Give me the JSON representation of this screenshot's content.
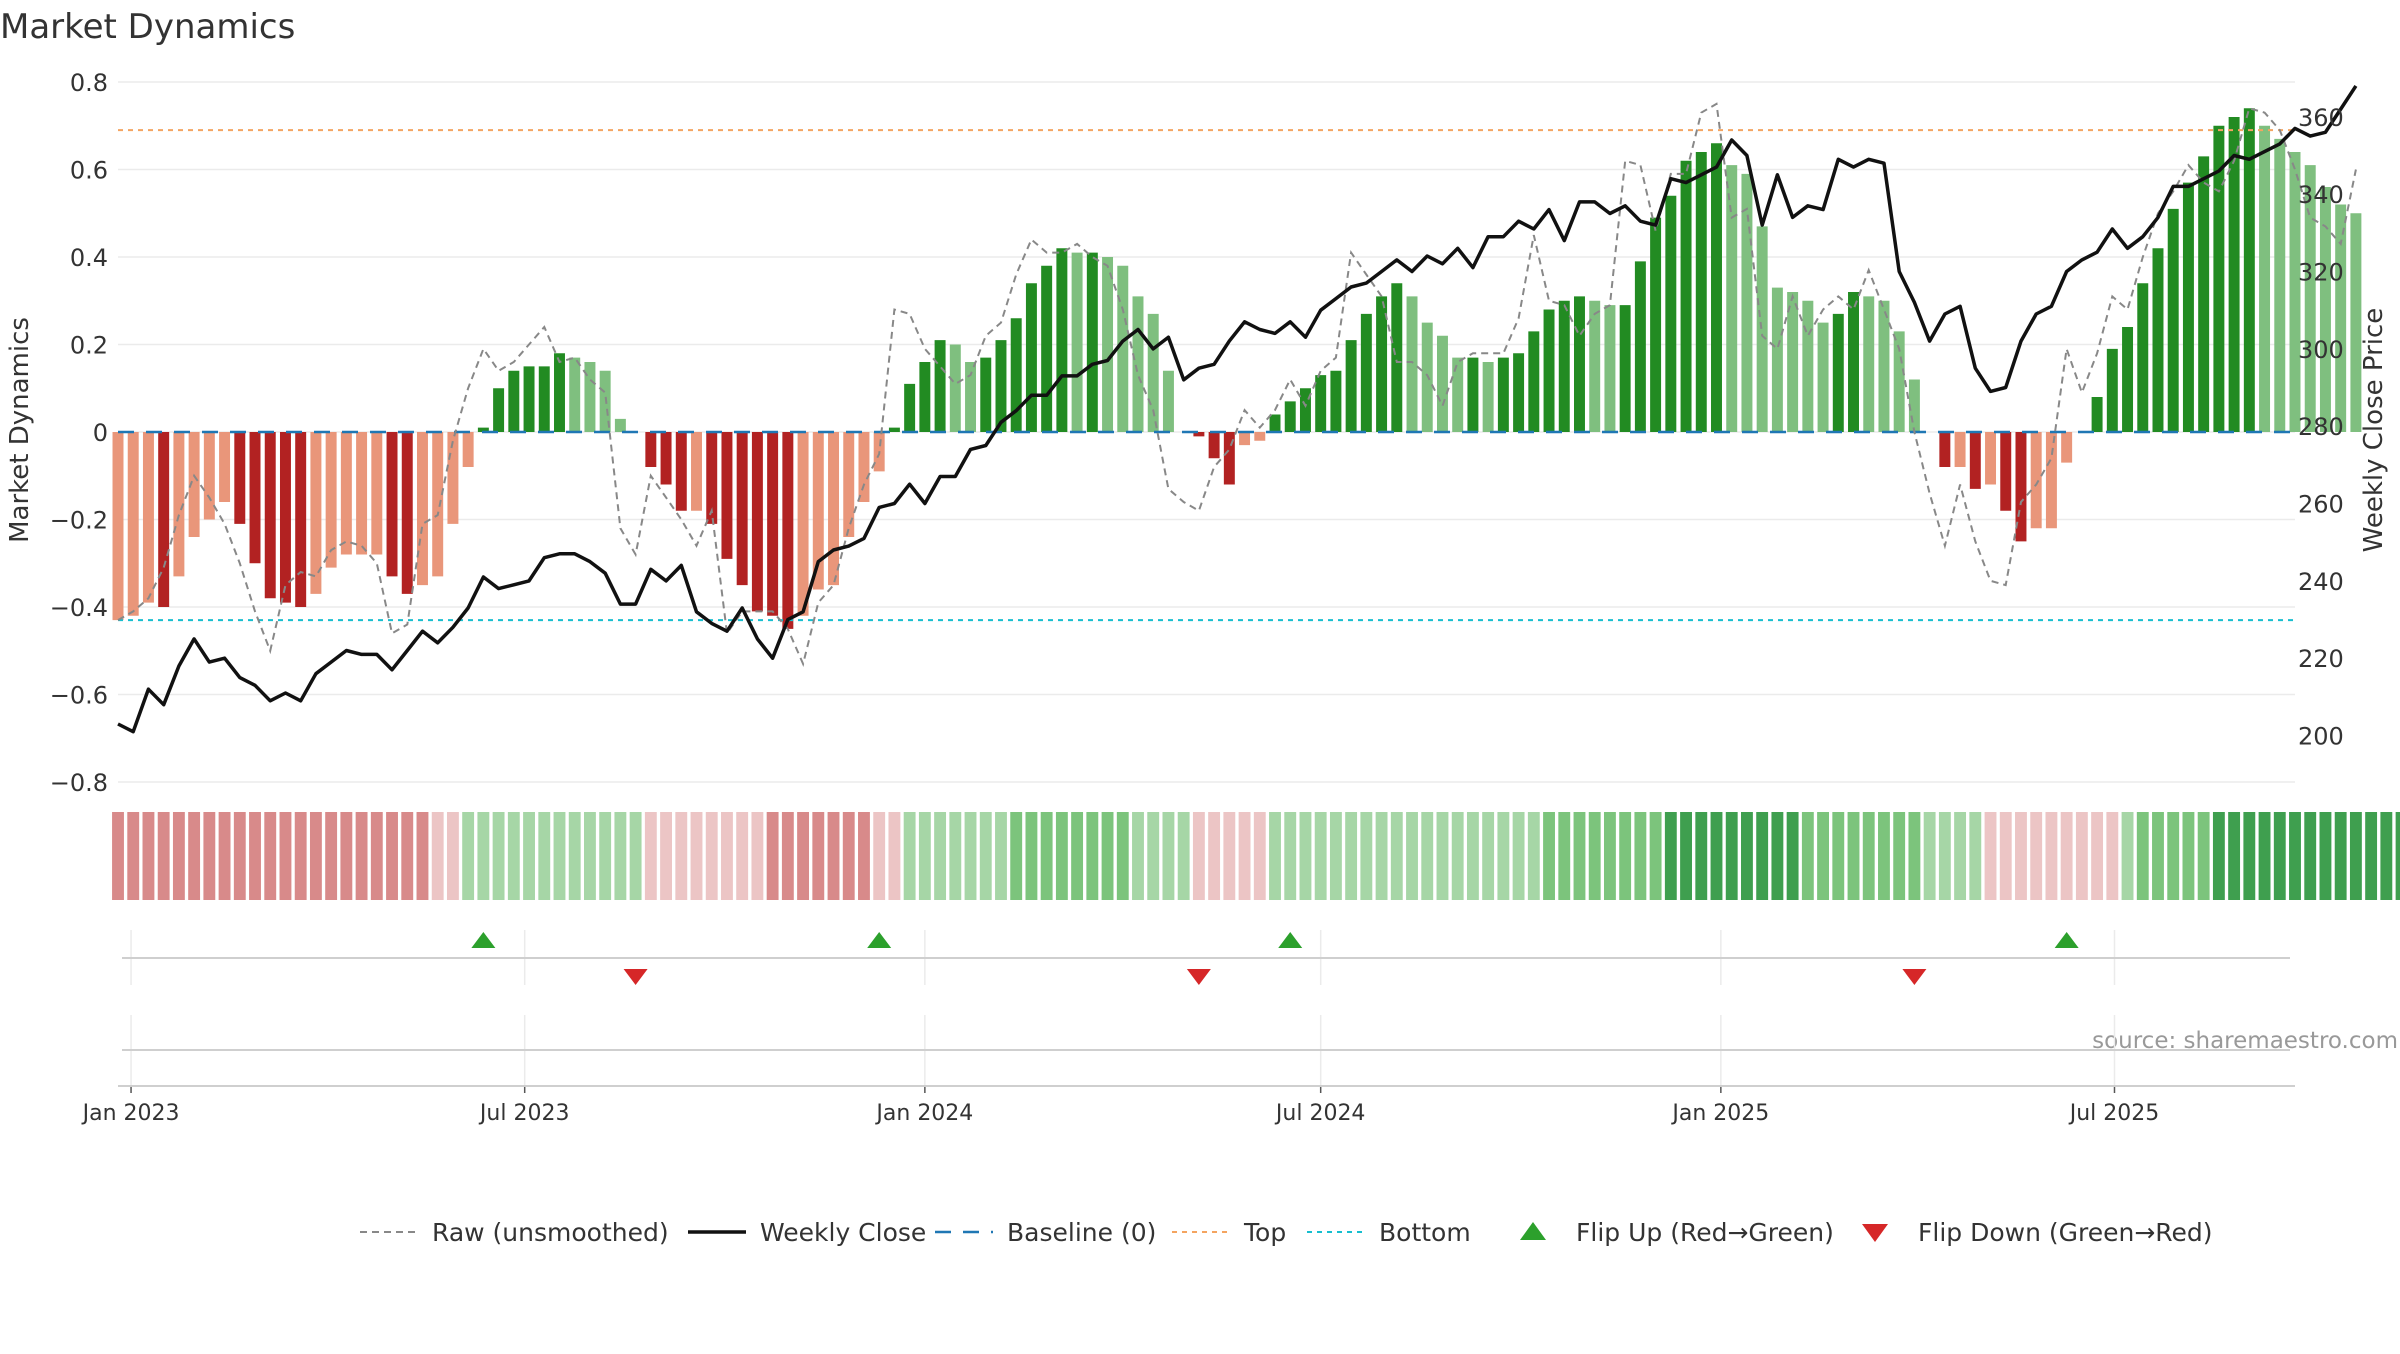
{
  "chart_data": {
    "type": "bar",
    "title": "Market Dynamics",
    "source": "source: sharemaestro.com",
    "left_axis": {
      "label": "Market Dynamics",
      "ylim": [
        -0.8,
        0.8
      ],
      "ticks": [
        {
          "value": 0.8,
          "label": "0.8"
        },
        {
          "value": 0.6,
          "label": "0.6"
        },
        {
          "value": 0.4,
          "label": "0.4"
        },
        {
          "value": 0.2,
          "label": "0.2"
        },
        {
          "value": 0,
          "label": "0"
        },
        {
          "value": -0.2,
          "label": "−0.2"
        },
        {
          "value": -0.4,
          "label": "−0.4"
        },
        {
          "value": -0.6,
          "label": "−0.6"
        },
        {
          "value": -0.8,
          "label": "−0.8"
        }
      ]
    },
    "right_axis": {
      "label": "Weekly Close Price",
      "ylim": [
        188,
        369
      ],
      "ticks": [
        {
          "value": 360,
          "label": "360"
        },
        {
          "value": 340,
          "label": "340"
        },
        {
          "value": 320,
          "label": "320"
        },
        {
          "value": 300,
          "label": "300"
        },
        {
          "value": 280,
          "label": "280"
        },
        {
          "value": 260,
          "label": "260"
        },
        {
          "value": 240,
          "label": "240"
        },
        {
          "value": 220,
          "label": "220"
        },
        {
          "value": 200,
          "label": "200"
        }
      ]
    },
    "x_axis": {
      "range": [
        "2022-12-26",
        "2025-09-22"
      ],
      "ticks": [
        {
          "date": "2023-01-01",
          "label": "Jan 2023"
        },
        {
          "date": "2023-07-01",
          "label": "Jul 2023"
        },
        {
          "date": "2024-01-01",
          "label": "Jan 2024"
        },
        {
          "date": "2024-07-01",
          "label": "Jul 2024"
        },
        {
          "date": "2025-01-01",
          "label": "Jan 2025"
        },
        {
          "date": "2025-07-01",
          "label": "Jul 2025"
        }
      ]
    },
    "start_week": "2022-12-26",
    "reference_lines": {
      "top": 0.69,
      "bottom": -0.43,
      "baseline": 0
    },
    "series": [
      {
        "name": "Market Dynamics",
        "type": "bar",
        "values": [
          -0.43,
          -0.42,
          -0.39,
          -0.4,
          -0.33,
          -0.24,
          -0.2,
          -0.16,
          -0.21,
          -0.3,
          -0.38,
          -0.39,
          -0.4,
          -0.37,
          -0.31,
          -0.28,
          -0.28,
          -0.28,
          -0.33,
          -0.37,
          -0.35,
          -0.33,
          -0.21,
          -0.08,
          0.01,
          0.1,
          0.14,
          0.15,
          0.15,
          0.18,
          0.17,
          0.16,
          0.14,
          0.03,
          0.0,
          -0.08,
          -0.12,
          -0.18,
          -0.18,
          -0.21,
          -0.29,
          -0.35,
          -0.41,
          -0.42,
          -0.45,
          -0.42,
          -0.36,
          -0.35,
          -0.24,
          -0.16,
          -0.09,
          0.01,
          0.11,
          0.16,
          0.21,
          0.2,
          0.16,
          0.17,
          0.21,
          0.26,
          0.34,
          0.38,
          0.42,
          0.41,
          0.41,
          0.4,
          0.38,
          0.31,
          0.27,
          0.14,
          0.0,
          -0.01,
          -0.06,
          -0.12,
          -0.03,
          -0.02,
          0.04,
          0.07,
          0.1,
          0.13,
          0.14,
          0.21,
          0.27,
          0.31,
          0.34,
          0.31,
          0.25,
          0.22,
          0.17,
          0.17,
          0.16,
          0.17,
          0.18,
          0.23,
          0.28,
          0.3,
          0.31,
          0.3,
          0.29,
          0.29,
          0.39,
          0.49,
          0.54,
          0.62,
          0.64,
          0.66,
          0.61,
          0.59,
          0.47,
          0.33,
          0.32,
          0.3,
          0.25,
          0.27,
          0.32,
          0.31,
          0.3,
          0.23,
          0.12,
          0.0,
          -0.08,
          -0.08,
          -0.13,
          -0.12,
          -0.18,
          -0.25,
          -0.22,
          -0.22,
          -0.07,
          0.0,
          0.08,
          0.19,
          0.24,
          0.34,
          0.42,
          0.51,
          0.57,
          0.63,
          0.7,
          0.72,
          0.74,
          0.7,
          0.67,
          0.64,
          0.61,
          0.56,
          0.52,
          0.5
        ]
      },
      {
        "name": "Raw (unsmoothed)",
        "type": "line",
        "color": "#888888",
        "values": [
          -0.43,
          -0.41,
          -0.38,
          -0.31,
          -0.19,
          -0.1,
          -0.15,
          -0.21,
          -0.3,
          -0.41,
          -0.5,
          -0.35,
          -0.32,
          -0.33,
          -0.27,
          -0.25,
          -0.26,
          -0.3,
          -0.46,
          -0.44,
          -0.21,
          -0.19,
          -0.02,
          0.1,
          0.19,
          0.14,
          0.16,
          0.2,
          0.24,
          0.16,
          0.17,
          0.12,
          0.09,
          -0.22,
          -0.28,
          -0.1,
          -0.15,
          -0.2,
          -0.26,
          -0.18,
          -0.46,
          -0.41,
          -0.41,
          -0.41,
          -0.45,
          -0.53,
          -0.39,
          -0.35,
          -0.22,
          -0.12,
          -0.05,
          0.28,
          0.27,
          0.19,
          0.15,
          0.11,
          0.13,
          0.22,
          0.25,
          0.36,
          0.44,
          0.41,
          0.41,
          0.43,
          0.4,
          0.38,
          0.28,
          0.13,
          0.05,
          -0.13,
          -0.16,
          -0.18,
          -0.08,
          -0.04,
          0.05,
          0.01,
          0.05,
          0.12,
          0.06,
          0.14,
          0.17,
          0.41,
          0.36,
          0.31,
          0.16,
          0.16,
          0.13,
          0.06,
          0.16,
          0.18,
          0.18,
          0.18,
          0.26,
          0.45,
          0.3,
          0.29,
          0.22,
          0.27,
          0.29,
          0.62,
          0.61,
          0.46,
          0.59,
          0.59,
          0.73,
          0.75,
          0.49,
          0.51,
          0.22,
          0.19,
          0.31,
          0.22,
          0.28,
          0.31,
          0.28,
          0.37,
          0.28,
          0.19,
          0.0,
          -0.14,
          -0.26,
          -0.12,
          -0.25,
          -0.34,
          -0.35,
          -0.16,
          -0.12,
          -0.06,
          0.19,
          0.09,
          0.18,
          0.31,
          0.28,
          0.4,
          0.5,
          0.55,
          0.61,
          0.57,
          0.55,
          0.62,
          0.74,
          0.73,
          0.69,
          0.6,
          0.49,
          0.47,
          0.43,
          0.6
        ]
      },
      {
        "name": "Weekly Close",
        "type": "line",
        "axis": "right",
        "color": "#111111",
        "values": [
          203,
          201,
          212,
          208,
          218,
          225,
          219,
          220,
          215,
          213,
          209,
          211,
          209,
          216,
          219,
          222,
          221,
          221,
          217,
          222,
          227,
          224,
          228,
          233,
          241,
          238,
          239,
          240,
          246,
          247,
          247,
          245,
          242,
          234,
          234,
          243,
          240,
          244,
          232,
          229,
          227,
          233,
          225,
          220,
          230,
          232,
          245,
          248,
          249,
          251,
          259,
          260,
          265,
          260,
          267,
          267,
          274,
          275,
          281,
          284,
          288,
          288,
          293,
          293,
          296,
          297,
          302,
          305,
          300,
          303,
          292,
          295,
          296,
          302,
          307,
          305,
          304,
          307,
          303,
          310,
          313,
          316,
          317,
          320,
          323,
          320,
          324,
          322,
          326,
          321,
          329,
          329,
          333,
          331,
          336,
          328,
          338,
          338,
          335,
          337,
          333,
          332,
          344,
          343,
          345,
          347,
          354,
          350,
          332,
          345,
          334,
          337,
          336,
          349,
          347,
          349,
          348,
          320,
          312,
          302,
          309,
          311,
          295,
          289,
          290,
          302,
          309,
          311,
          320,
          323,
          325,
          331,
          326,
          329,
          334,
          342,
          342,
          344,
          346,
          350,
          349,
          351,
          353,
          357,
          355,
          356,
          362,
          368
        ]
      }
    ],
    "regime_strip": {
      "description_levels": [
        -2,
        -2,
        -2,
        -2,
        -2,
        -2,
        -2,
        -2,
        -2,
        -2,
        -2,
        -2,
        -2,
        -2,
        -2,
        -2,
        -2,
        -2,
        -2,
        -2,
        -2,
        -1,
        -1,
        1,
        1,
        1,
        1,
        1,
        1,
        1,
        1,
        1,
        1,
        1,
        1,
        -1,
        -1,
        -1,
        -1,
        -1,
        -1,
        -1,
        -1,
        -2,
        -2,
        -2,
        -2,
        -2,
        -2,
        -2,
        -1,
        -1,
        1,
        1,
        1,
        1,
        1,
        1,
        1,
        2,
        2,
        2,
        2,
        2,
        2,
        2,
        2,
        1,
        1,
        1,
        1,
        -1,
        -1,
        -1,
        -1,
        -1,
        1,
        1,
        1,
        1,
        1,
        1,
        1,
        1,
        1,
        1,
        1,
        1,
        1,
        1,
        1,
        1,
        1,
        1,
        2,
        2,
        2,
        2,
        2,
        2,
        2,
        2,
        3,
        3,
        3,
        3,
        3,
        3,
        3,
        3,
        3,
        2,
        2,
        2,
        2,
        2,
        2,
        2,
        2,
        1,
        1,
        1,
        1,
        -1,
        -1,
        -1,
        -1,
        -1,
        -1,
        -1,
        -1,
        -1,
        1,
        2,
        2,
        2,
        2,
        2,
        3,
        3,
        3,
        3,
        3,
        3,
        3,
        3,
        3,
        3,
        3,
        3,
        3,
        2
      ]
    },
    "flips": [
      {
        "date": "2023-06-12",
        "type": "up"
      },
      {
        "date": "2023-08-21",
        "type": "down"
      },
      {
        "date": "2023-12-11",
        "type": "up"
      },
      {
        "date": "2024-05-06",
        "type": "down"
      },
      {
        "date": "2024-06-17",
        "type": "up"
      },
      {
        "date": "2025-03-31",
        "type": "down"
      },
      {
        "date": "2025-06-09",
        "type": "up"
      }
    ],
    "colors": {
      "strong_green": "#228b22",
      "light_green": "#7fbf7f",
      "strong_red": "#b22222",
      "light_red": "#e9967a",
      "raw_line": "#888888",
      "close_line": "#111111",
      "baseline": "#1f77b4",
      "top": "#f4a460",
      "bottom": "#17becf",
      "flip_up": "#2ca02c",
      "flip_down": "#d62728"
    },
    "legend": {
      "placement": "bottom",
      "items": [
        {
          "key": "raw",
          "label": "Raw (unsmoothed)"
        },
        {
          "key": "close",
          "label": "Weekly Close"
        },
        {
          "key": "baseline",
          "label": "Baseline (0)"
        },
        {
          "key": "top",
          "label": "Top"
        },
        {
          "key": "bottom",
          "label": "Bottom"
        },
        {
          "key": "flipup",
          "label": "Flip Up (Red→Green)"
        },
        {
          "key": "flipdown",
          "label": "Flip Down (Green→Red)"
        }
      ]
    }
  }
}
